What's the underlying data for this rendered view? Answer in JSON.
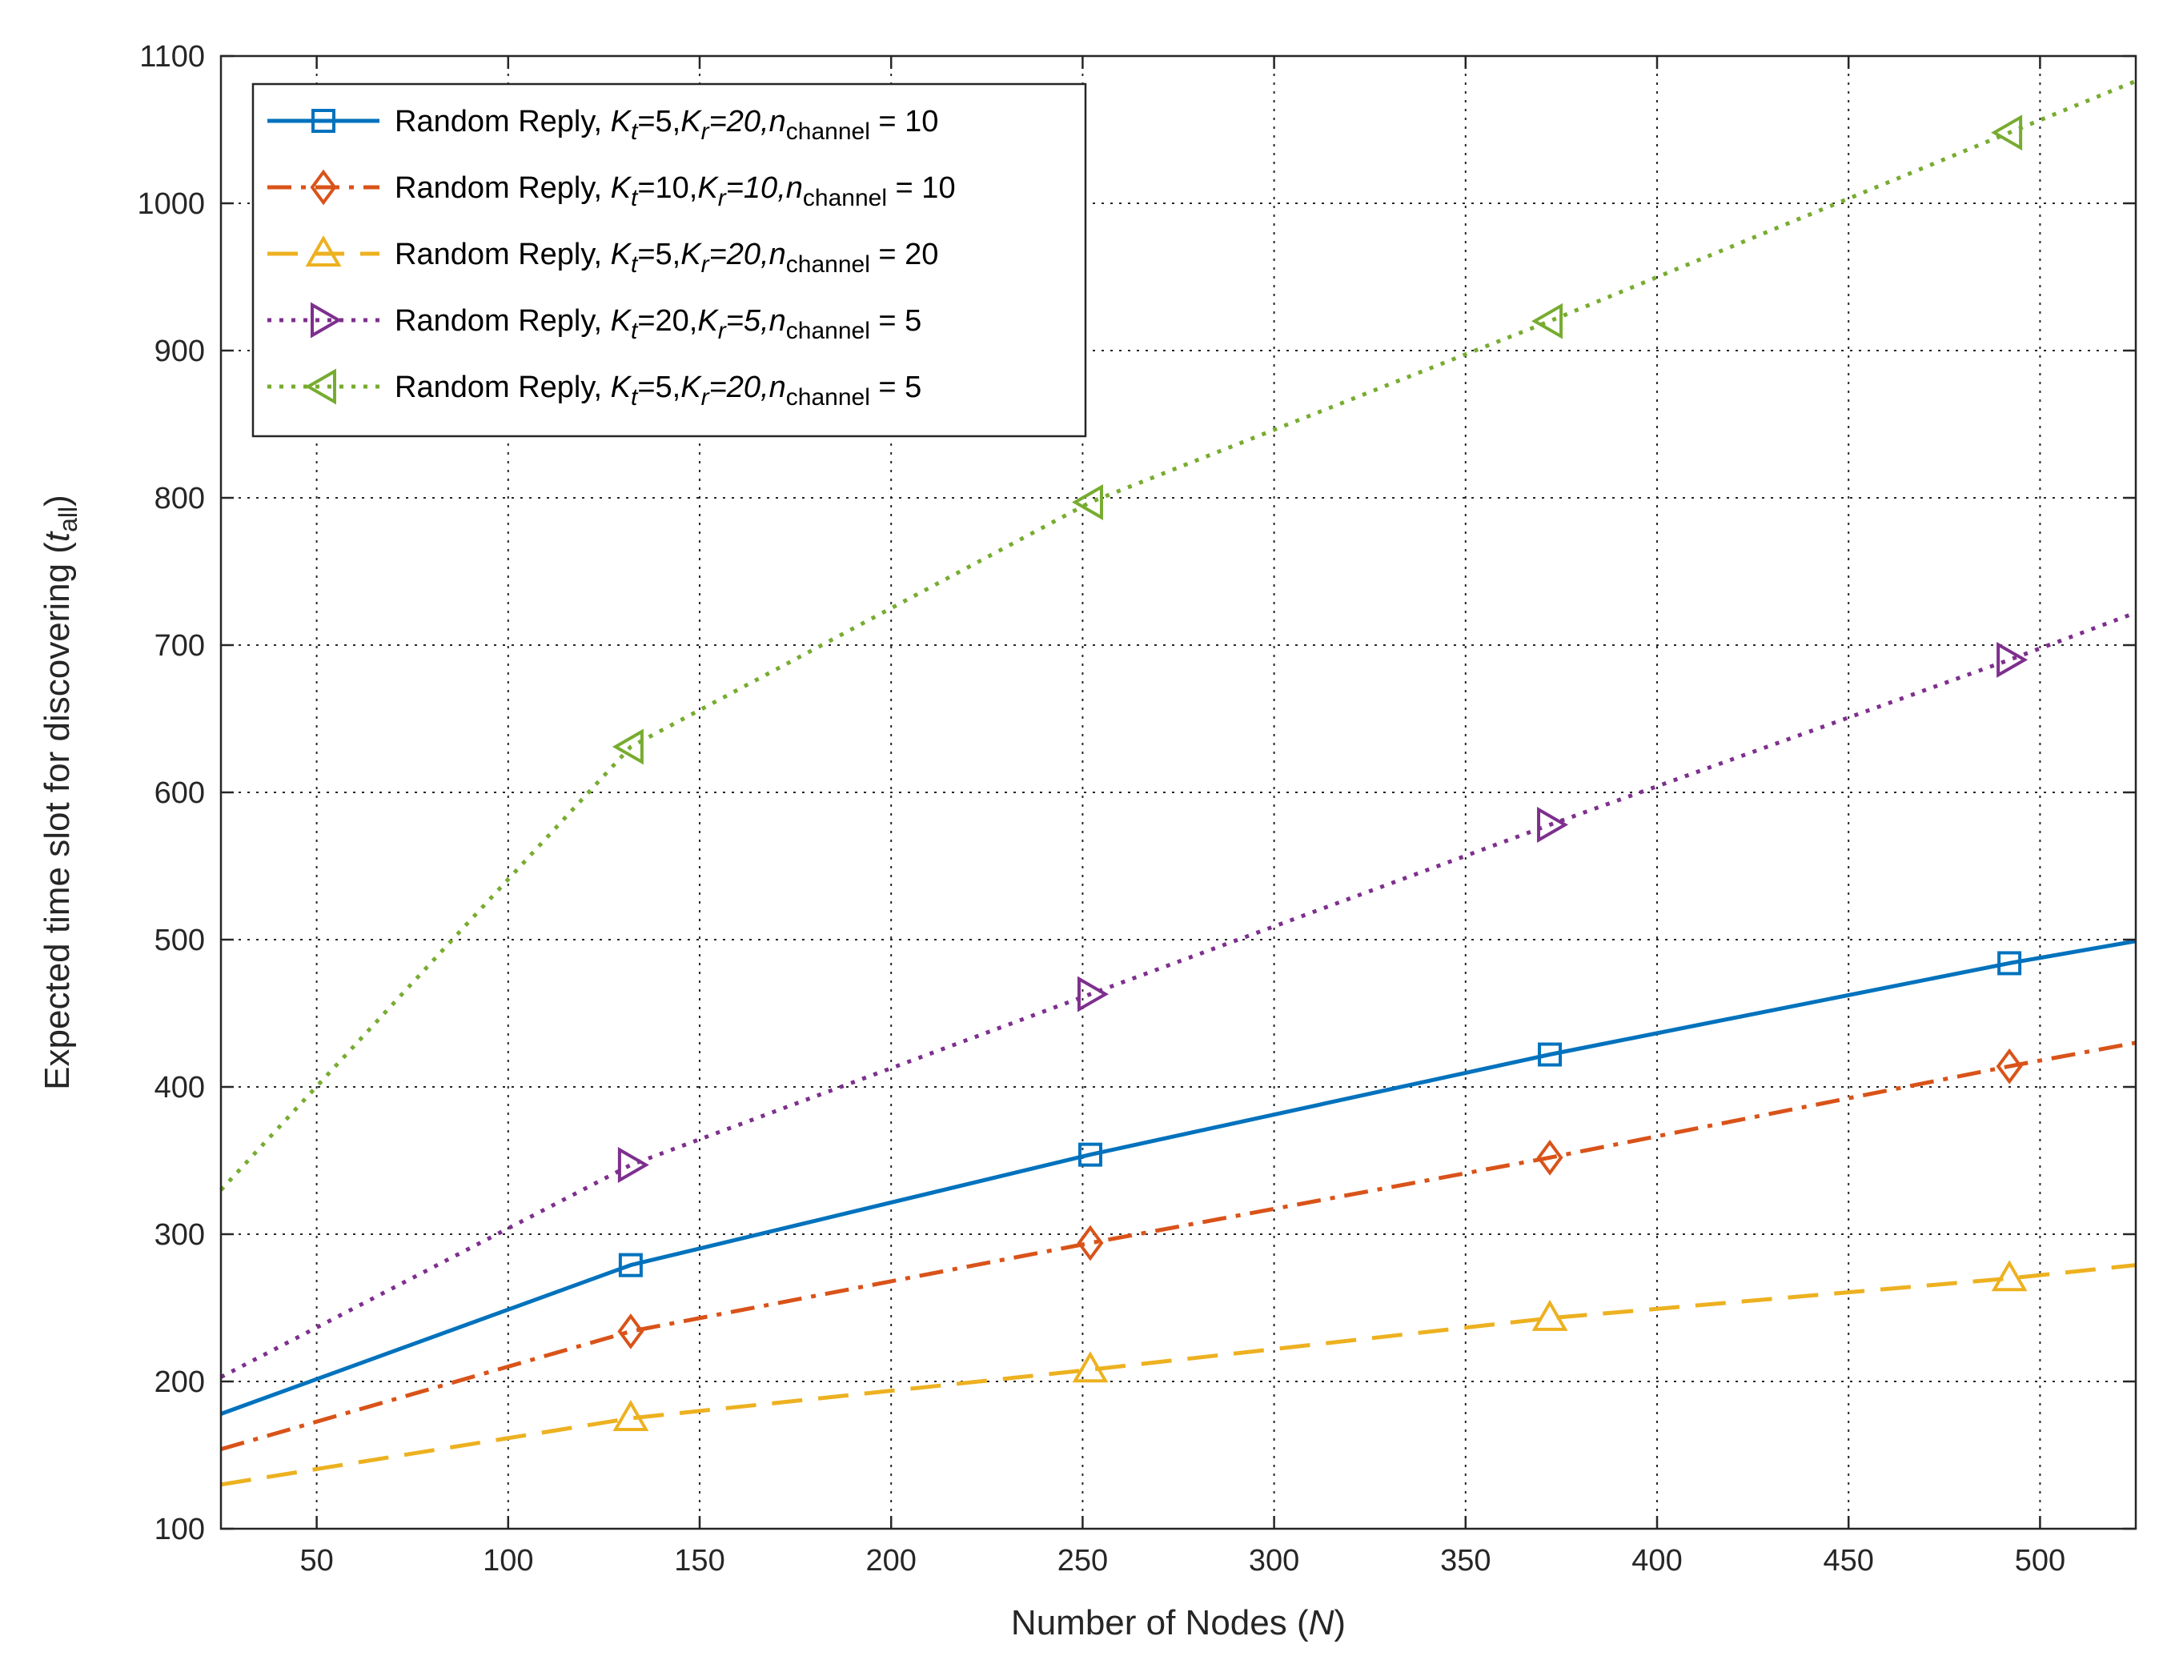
{
  "chart_data": {
    "type": "line",
    "title": "",
    "xlabel": "Number of Nodes (N)",
    "ylabel": "Expected time slot for discovering (t_all)",
    "xlim": [
      25,
      525
    ],
    "ylim": [
      100,
      1100
    ],
    "xticks": [
      50,
      100,
      150,
      200,
      250,
      300,
      350,
      400,
      450,
      500
    ],
    "yticks": [
      100,
      200,
      300,
      400,
      500,
      600,
      700,
      800,
      900,
      1000,
      1100
    ],
    "grid": true,
    "legend_position": "top-left",
    "series": [
      {
        "name": "Random Reply, Kt=5,Kr=20,nchannel = 10",
        "legend": {
          "prefix": "Random Reply, ",
          "kt": "5",
          "kr": "20",
          "n": "10"
        },
        "color": "#0072BD",
        "line_style": "solid",
        "marker": "square",
        "x": [
          25,
          132,
          252,
          372,
          492,
          525
        ],
        "y": [
          178,
          279,
          354,
          422,
          484,
          499
        ],
        "marker_x": [
          132,
          252,
          372,
          492
        ]
      },
      {
        "name": "Random Reply, Kt=10,Kr=10,nchannel = 10",
        "legend": {
          "prefix": "Random Reply, ",
          "kt": "10",
          "kr": "10",
          "n": "10"
        },
        "color": "#D95319",
        "line_style": "dashdot",
        "marker": "diamond",
        "x": [
          25,
          132,
          252,
          372,
          492,
          525
        ],
        "y": [
          154,
          234,
          294,
          352,
          414,
          430
        ],
        "marker_x": [
          132,
          252,
          372,
          492
        ]
      },
      {
        "name": "Random Reply, Kt=5,Kr=20,nchannel = 20",
        "legend": {
          "prefix": "Random Reply, ",
          "kt": "5",
          "kr": "20",
          "n": "20"
        },
        "color": "#EDB120",
        "line_style": "dashed",
        "marker": "triangle-up",
        "x": [
          25,
          132,
          252,
          372,
          492,
          525
        ],
        "y": [
          130,
          175,
          208,
          243,
          270,
          279
        ],
        "marker_x": [
          132,
          252,
          372,
          492
        ]
      },
      {
        "name": "Random Reply, Kt=20,Kr=5,nchannel = 5",
        "legend": {
          "prefix": "Random Reply, ",
          "kt": "20",
          "kr": "5",
          "n": "5"
        },
        "color": "#7E2F8E",
        "line_style": "dotted",
        "marker": "triangle-right",
        "x": [
          25,
          132,
          252,
          372,
          492,
          525
        ],
        "y": [
          203,
          347,
          463,
          578,
          690,
          722
        ],
        "marker_x": [
          132,
          252,
          372,
          492
        ]
      },
      {
        "name": "Random Reply, Kt=5,Kr=20,nchannel = 5",
        "legend": {
          "prefix": "Random Reply, ",
          "kt": "5",
          "kr": "20",
          "n": "5"
        },
        "color": "#77AC30",
        "line_style": "dotted",
        "marker": "triangle-left",
        "x": [
          25,
          132,
          252,
          372,
          492,
          525
        ],
        "y": [
          330,
          631,
          797,
          920,
          1048,
          1083
        ],
        "marker_x": [
          132,
          252,
          372,
          492
        ]
      }
    ]
  },
  "axis_text": {
    "xlabel_pre": "Number of Nodes (",
    "xlabel_var": "N",
    "xlabel_post": ")",
    "ylabel_pre": "Expected time slot for discovering (",
    "ylabel_var": "t",
    "ylabel_sub": "all",
    "ylabel_post": ")"
  }
}
